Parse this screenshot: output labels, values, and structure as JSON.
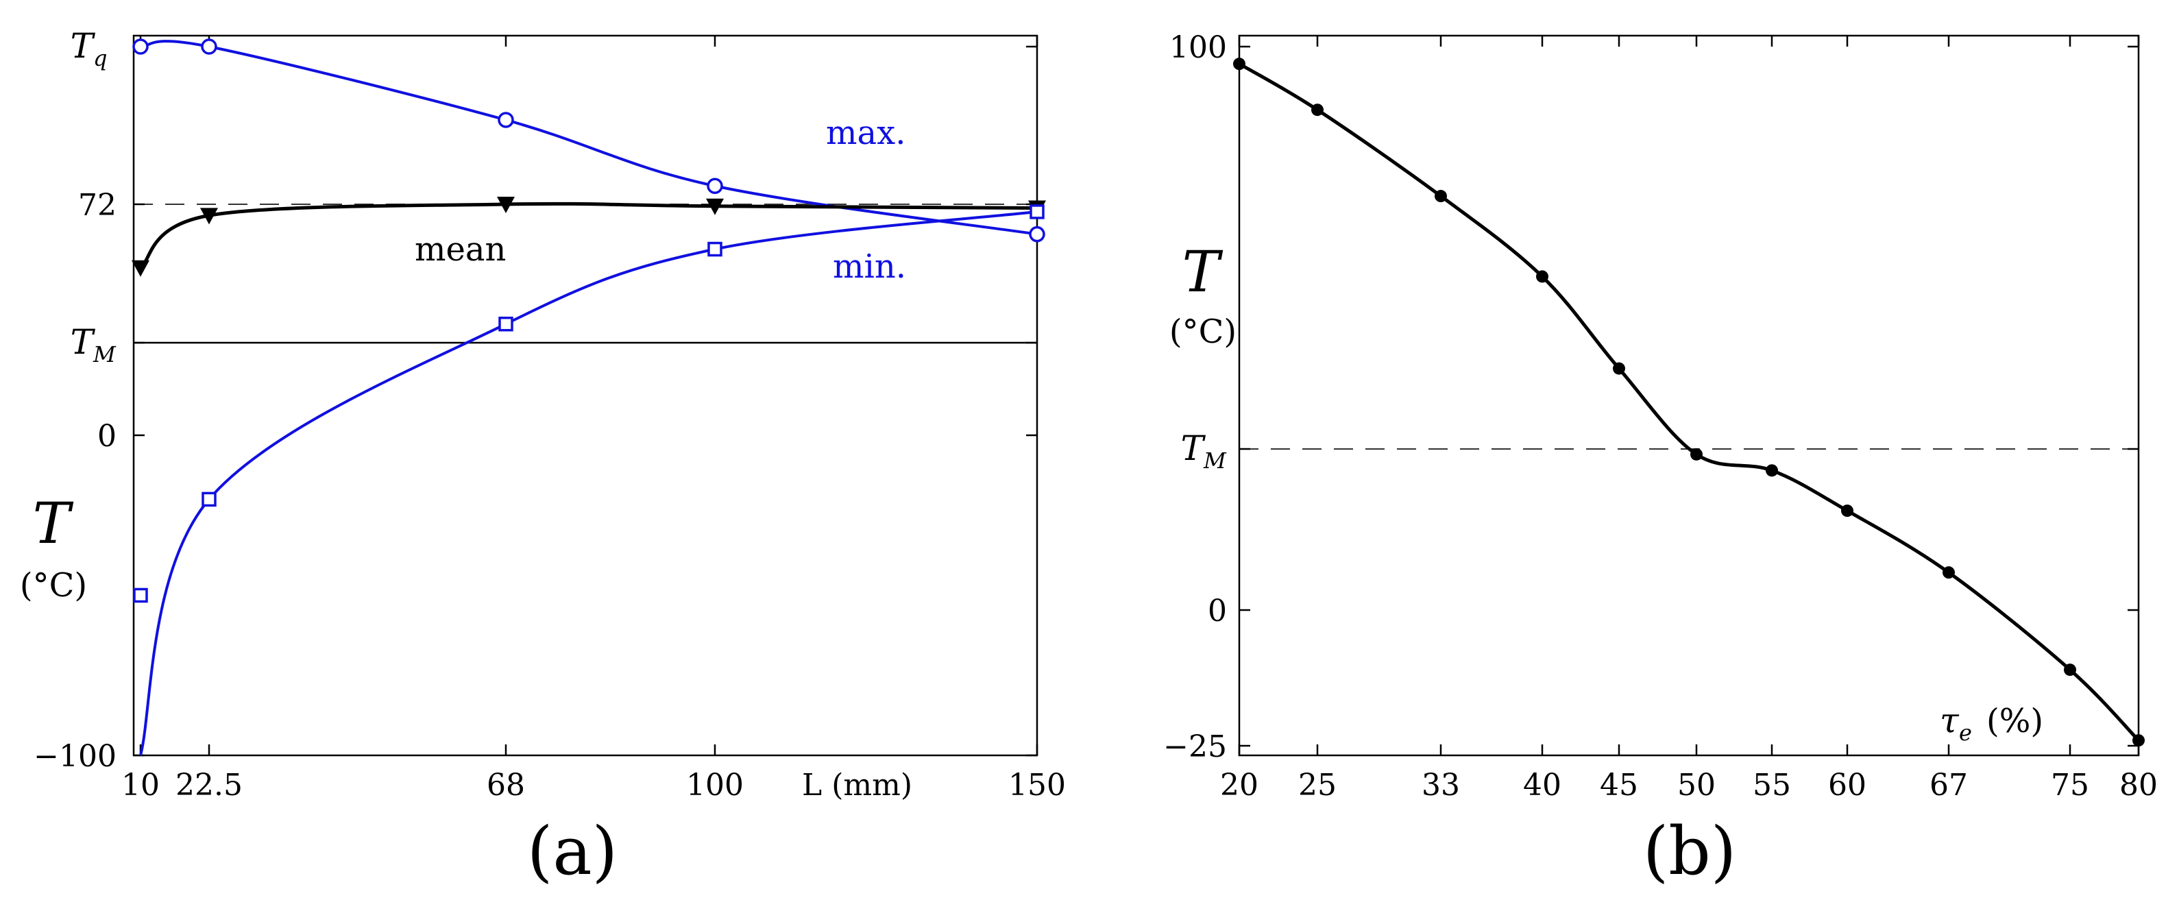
{
  "chart_data": [
    {
      "type": "line",
      "panel_label": "(a)",
      "xlabel": "L (mm)",
      "ylabel": "T",
      "yunit": "(°C)",
      "x_ticks": [
        10,
        22.5,
        68,
        100,
        150
      ],
      "x_tick_labels": [
        "10",
        "22.5",
        "68",
        "100",
        "150"
      ],
      "y_ticks": [
        {
          "symbol": "T",
          "sub": "q",
          "label": ""
        },
        {
          "symbol": "",
          "sub": "",
          "label": "72"
        },
        {
          "symbol": "T",
          "sub": "M",
          "label": ""
        },
        {
          "symbol": "",
          "sub": "",
          "label": "0"
        },
        {
          "symbol": "",
          "sub": "",
          "label": "−100"
        }
      ],
      "reference_72": 72,
      "series": [
        {
          "name": "max.",
          "color": "#1010e0",
          "marker": "circle",
          "x": [
            10,
            22.5,
            68,
            100,
            150
          ],
          "y": [
            115,
            115,
            95,
            77,
            64
          ]
        },
        {
          "name": "mean",
          "color": "#000000",
          "marker": "triangle-down",
          "x": [
            10,
            22.5,
            68,
            100,
            150
          ],
          "y": [
            55,
            69,
            72,
            71.5,
            71
          ]
        },
        {
          "name": "min.",
          "color": "#1010e0",
          "marker": "square",
          "x": [
            10,
            22.5,
            68,
            100,
            150
          ],
          "y": [
            -50,
            -20,
            40,
            60,
            70
          ]
        }
      ]
    },
    {
      "type": "line",
      "panel_label": "(b)",
      "xlabel_symbol": "τ",
      "xlabel_sub": "e",
      "xlabel_unit": "(%)",
      "ylabel": "T",
      "yunit": "(°C)",
      "x_tick_labels": [
        "20",
        "25",
        "33",
        "40",
        "45",
        "50",
        "55",
        "60",
        "67",
        "75",
        "80"
      ],
      "y_ticks": [
        {
          "symbol": "",
          "sub": "",
          "label": "100"
        },
        {
          "symbol": "T",
          "sub": "M",
          "label": ""
        },
        {
          "symbol": "",
          "sub": "",
          "label": "0"
        },
        {
          "symbol": "",
          "sub": "",
          "label": "−25"
        }
      ],
      "series": [
        {
          "name": "T",
          "color": "#000000",
          "marker": "dot",
          "x": [
            20,
            25,
            33,
            40,
            45,
            50,
            55,
            60,
            67,
            75,
            80
          ],
          "y": [
            97,
            89,
            74,
            60,
            44,
            29,
            26,
            18.5,
            7,
            -11,
            -24
          ]
        }
      ]
    }
  ]
}
